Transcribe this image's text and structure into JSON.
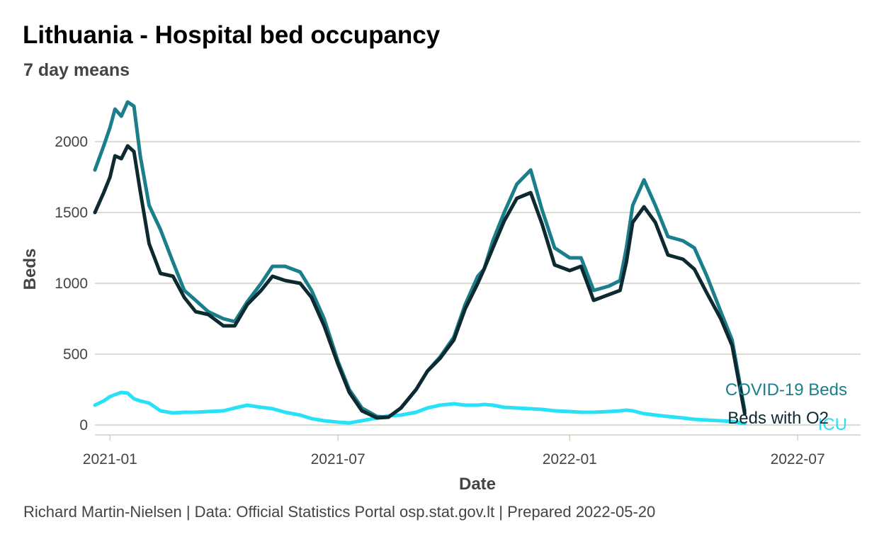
{
  "chart_data": {
    "type": "line",
    "title": "Lithuania - Hospital bed occupancy",
    "subtitle": "7 day means",
    "xlabel": "Date",
    "ylabel": "Beds",
    "caption": "Richard Martin-Nielsen | Data: Official Statistics Portal osp.stat.gov.lt | Prepared 2022-05-20",
    "x_ticks": [
      "2021-01",
      "2021-07",
      "2022-01",
      "2022-07"
    ],
    "y_ticks": [
      0,
      500,
      1000,
      1500,
      2000
    ],
    "xlim": [
      "2020-12-20",
      "2022-08-20"
    ],
    "ylim": [
      -100,
      2300
    ],
    "grid": true,
    "legend": "direct labels at line ends",
    "x": [
      "2020-12-20",
      "2020-12-27",
      "2021-01-01",
      "2021-01-05",
      "2021-01-10",
      "2021-01-15",
      "2021-01-20",
      "2021-01-25",
      "2021-02-01",
      "2021-02-10",
      "2021-02-20",
      "2021-03-01",
      "2021-03-10",
      "2021-03-20",
      "2021-04-01",
      "2021-04-10",
      "2021-04-20",
      "2021-05-01",
      "2021-05-10",
      "2021-05-20",
      "2021-06-01",
      "2021-06-10",
      "2021-06-20",
      "2021-07-01",
      "2021-07-10",
      "2021-07-20",
      "2021-08-01",
      "2021-08-10",
      "2021-08-20",
      "2021-09-01",
      "2021-09-10",
      "2021-09-20",
      "2021-10-01",
      "2021-10-10",
      "2021-10-20",
      "2021-10-25",
      "2021-11-01",
      "2021-11-10",
      "2021-11-20",
      "2021-12-01",
      "2021-12-10",
      "2021-12-20",
      "2022-01-01",
      "2022-01-10",
      "2022-01-20",
      "2022-02-01",
      "2022-02-10",
      "2022-02-15",
      "2022-02-20",
      "2022-03-01",
      "2022-03-10",
      "2022-03-20",
      "2022-04-01",
      "2022-04-10",
      "2022-04-20",
      "2022-05-01",
      "2022-05-10",
      "2022-05-20"
    ],
    "series": [
      {
        "name": "COVID-19 Beds",
        "color": "#1a7f8a",
        "values": [
          1800,
          1970,
          2100,
          2230,
          2180,
          2280,
          2250,
          1900,
          1550,
          1380,
          1150,
          950,
          880,
          800,
          750,
          730,
          870,
          1000,
          1120,
          1120,
          1080,
          950,
          750,
          450,
          250,
          120,
          60,
          55,
          120,
          250,
          380,
          480,
          620,
          850,
          1050,
          1100,
          1300,
          1500,
          1700,
          1800,
          1520,
          1250,
          1180,
          1180,
          950,
          980,
          1020,
          1250,
          1550,
          1730,
          1550,
          1330,
          1300,
          1250,
          1050,
          800,
          600,
          100
        ],
        "end_label": "COVID-19 Beds"
      },
      {
        "name": "Beds with O2",
        "color": "#0d2a30",
        "values": [
          1500,
          1640,
          1750,
          1900,
          1880,
          1970,
          1930,
          1650,
          1280,
          1070,
          1050,
          900,
          800,
          780,
          700,
          700,
          850,
          950,
          1050,
          1020,
          1000,
          900,
          700,
          430,
          230,
          100,
          50,
          55,
          120,
          250,
          380,
          470,
          600,
          820,
          1000,
          1100,
          1250,
          1440,
          1600,
          1640,
          1420,
          1130,
          1090,
          1120,
          880,
          920,
          950,
          1150,
          1430,
          1540,
          1430,
          1200,
          1170,
          1100,
          930,
          750,
          560,
          80
        ],
        "end_label": "Beds with O2"
      },
      {
        "name": "ICU",
        "color": "#29e1f6",
        "values": [
          140,
          170,
          200,
          215,
          230,
          225,
          185,
          170,
          155,
          100,
          85,
          90,
          90,
          95,
          100,
          120,
          140,
          125,
          115,
          90,
          70,
          45,
          30,
          20,
          15,
          30,
          50,
          65,
          70,
          90,
          120,
          140,
          150,
          140,
          140,
          145,
          140,
          125,
          120,
          115,
          110,
          100,
          95,
          90,
          90,
          95,
          100,
          105,
          100,
          80,
          70,
          60,
          50,
          40,
          35,
          30,
          25,
          10
        ],
        "end_label": "ICU"
      }
    ]
  }
}
